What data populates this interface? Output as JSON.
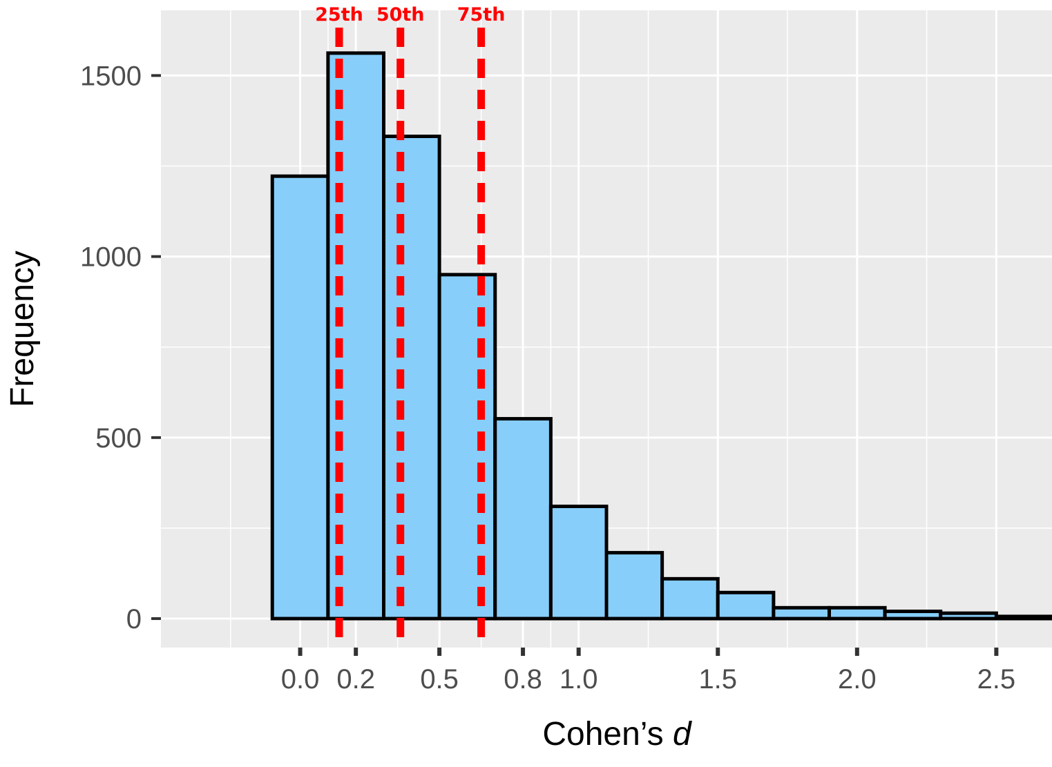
{
  "chart_data": {
    "type": "bar",
    "subtype": "histogram",
    "xlabel_main": "Cohen’s ",
    "xlabel_italic": "d",
    "ylabel": "Frequency",
    "bin_width": 0.2,
    "bins": [
      {
        "start": -0.1,
        "end": 0.1,
        "count": 1222
      },
      {
        "start": 0.1,
        "end": 0.3,
        "count": 1562
      },
      {
        "start": 0.3,
        "end": 0.5,
        "count": 1332
      },
      {
        "start": 0.5,
        "end": 0.7,
        "count": 950
      },
      {
        "start": 0.7,
        "end": 0.9,
        "count": 552
      },
      {
        "start": 0.9,
        "end": 1.1,
        "count": 310
      },
      {
        "start": 1.1,
        "end": 1.3,
        "count": 182
      },
      {
        "start": 1.3,
        "end": 1.5,
        "count": 110
      },
      {
        "start": 1.5,
        "end": 1.7,
        "count": 72
      },
      {
        "start": 1.7,
        "end": 1.9,
        "count": 30
      },
      {
        "start": 1.9,
        "end": 2.1,
        "count": 30
      },
      {
        "start": 2.1,
        "end": 2.3,
        "count": 20
      },
      {
        "start": 2.3,
        "end": 2.5,
        "count": 15
      },
      {
        "start": 2.5,
        "end": 2.7,
        "count": 6
      }
    ],
    "x_ticks": [
      {
        "value": 0.0,
        "label": "0.0"
      },
      {
        "value": 0.2,
        "label": "0.2"
      },
      {
        "value": 0.5,
        "label": "0.5"
      },
      {
        "value": 0.8,
        "label": "0.8"
      },
      {
        "value": 1.0,
        "label": "1.0"
      },
      {
        "value": 1.5,
        "label": "1.5"
      },
      {
        "value": 2.0,
        "label": "2.0"
      },
      {
        "value": 2.5,
        "label": "2.5"
      }
    ],
    "y_ticks": [
      {
        "value": 0,
        "label": "0"
      },
      {
        "value": 500,
        "label": "500"
      },
      {
        "value": 1000,
        "label": "1000"
      },
      {
        "value": 1500,
        "label": "1500"
      }
    ],
    "percentile_lines": [
      {
        "label": "25th",
        "x": 0.14
      },
      {
        "label": "50th",
        "x": 0.36
      },
      {
        "label": "75th",
        "x": 0.65
      }
    ],
    "xlim": [
      -0.5,
      2.7
    ],
    "ylim": [
      -80,
      1680
    ],
    "grid": true,
    "colors": {
      "bar_fill": "#87cefa",
      "bar_stroke": "#000000",
      "percentile_line": "#ff0000",
      "panel_background": "#ebebeb",
      "grid_line": "#ffffff"
    }
  }
}
